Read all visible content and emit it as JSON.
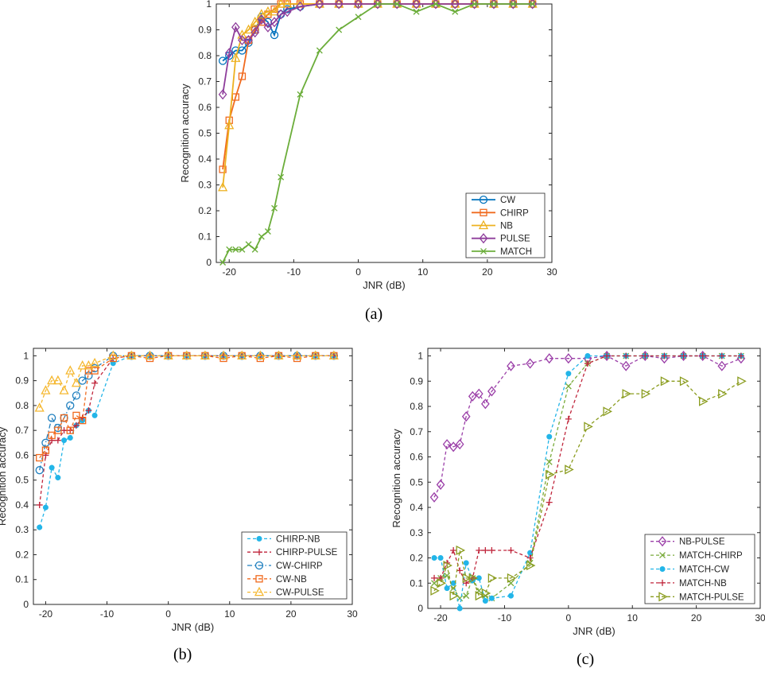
{
  "captions": {
    "a": "(a)",
    "b": "(b)",
    "c": "(c)"
  },
  "chart_data": [
    {
      "id": "a",
      "type": "line",
      "xlabel": "JNR (dB)",
      "ylabel": "Recognition accuracy",
      "xlim": [
        -22,
        30
      ],
      "ylim": [
        0,
        1
      ],
      "xticks": [
        -20,
        -10,
        0,
        10,
        20,
        30
      ],
      "yticks": [
        0,
        0.1,
        0.2,
        0.3,
        0.4,
        0.5,
        0.6,
        0.7,
        0.8,
        0.9,
        1
      ],
      "grid": false,
      "legend_position": "bottom-right",
      "series": [
        {
          "name": "CW",
          "color": "#0072bd",
          "dash": "solid",
          "marker": "circle",
          "x": [
            -21,
            -20,
            -19,
            -18,
            -17,
            -16,
            -15,
            -14,
            -13,
            -12,
            -11,
            -9,
            -6,
            -3,
            0,
            3,
            6,
            9,
            12,
            15,
            18,
            21,
            24,
            27
          ],
          "y": [
            0.78,
            0.8,
            0.82,
            0.82,
            0.85,
            0.9,
            0.95,
            0.93,
            0.88,
            0.96,
            0.98,
            0.99,
            1,
            1,
            1,
            1,
            1,
            1,
            1,
            1,
            1,
            1,
            1,
            1
          ]
        },
        {
          "name": "CHIRP",
          "color": "#f06a1e",
          "dash": "solid",
          "marker": "square",
          "x": [
            -21,
            -20,
            -19,
            -18,
            -17,
            -16,
            -15,
            -14,
            -13,
            -12,
            -11,
            -9,
            -6,
            -3,
            0,
            3,
            6,
            9,
            12,
            15,
            18,
            21,
            24,
            27
          ],
          "y": [
            0.36,
            0.55,
            0.64,
            0.72,
            0.86,
            0.9,
            0.93,
            0.96,
            0.98,
            1,
            1,
            1,
            1,
            1,
            1,
            1,
            1,
            1,
            1,
            1,
            1,
            1,
            1,
            1
          ]
        },
        {
          "name": "NB",
          "color": "#edb120",
          "dash": "solid",
          "marker": "triangle",
          "x": [
            -21,
            -20,
            -19,
            -18,
            -17,
            -16,
            -15,
            -14,
            -13,
            -12,
            -11,
            -9,
            -6,
            -3,
            0,
            3,
            6,
            9,
            12,
            15,
            18,
            21,
            24,
            27
          ],
          "y": [
            0.29,
            0.53,
            0.79,
            0.88,
            0.9,
            0.93,
            0.96,
            0.97,
            0.97,
            1,
            1,
            1,
            1,
            1,
            1,
            1,
            1,
            1,
            1,
            1,
            1,
            1,
            1,
            1
          ]
        },
        {
          "name": "PULSE",
          "color": "#8e3d9b",
          "dash": "solid",
          "marker": "diamond",
          "x": [
            -21,
            -20,
            -19,
            -18,
            -17,
            -16,
            -15,
            -14,
            -13,
            -12,
            -11,
            -9,
            -6,
            -3,
            0,
            3,
            6,
            9,
            12,
            15,
            18,
            21,
            24,
            27
          ],
          "y": [
            0.65,
            0.81,
            0.91,
            0.86,
            0.86,
            0.89,
            0.94,
            0.91,
            0.93,
            0.96,
            0.97,
            0.99,
            1,
            1,
            1,
            1,
            1,
            1,
            1,
            1,
            1,
            1,
            1,
            1
          ]
        },
        {
          "name": "MATCH",
          "color": "#6bad3a",
          "dash": "solid",
          "marker": "x",
          "x": [
            -21,
            -20,
            -19,
            -18,
            -17,
            -16,
            -15,
            -14,
            -13,
            -12,
            -9,
            -6,
            -3,
            0,
            3,
            6,
            9,
            12,
            15,
            18,
            21,
            24,
            27
          ],
          "y": [
            0.0,
            0.05,
            0.05,
            0.05,
            0.07,
            0.05,
            0.1,
            0.12,
            0.21,
            0.33,
            0.65,
            0.82,
            0.9,
            0.95,
            1,
            1,
            0.97,
            1,
            0.97,
            1,
            1,
            1,
            1
          ]
        }
      ]
    },
    {
      "id": "b",
      "type": "line",
      "xlabel": "JNR (dB)",
      "ylabel": "Recognition accuracy",
      "xlim": [
        -22,
        30
      ],
      "ylim": [
        0,
        1.03
      ],
      "xticks": [
        -20,
        -10,
        0,
        10,
        20,
        30
      ],
      "yticks": [
        0,
        0.1,
        0.2,
        0.3,
        0.4,
        0.5,
        0.6,
        0.7,
        0.8,
        0.9,
        1
      ],
      "grid": false,
      "legend_position": "bottom-right",
      "series": [
        {
          "name": "CHIRP-NB",
          "color": "#22b5e8",
          "dash": "dashed",
          "marker": "asterisk",
          "x": [
            -21,
            -20,
            -19,
            -18,
            -17,
            -16,
            -15,
            -14,
            -13,
            -12,
            -9,
            -6,
            -3,
            0,
            3,
            6,
            9,
            12,
            15,
            18,
            21,
            24,
            27
          ],
          "y": [
            0.31,
            0.39,
            0.55,
            0.51,
            0.66,
            0.67,
            0.72,
            0.74,
            0.78,
            0.76,
            0.97,
            1,
            1,
            1,
            1,
            1,
            1,
            1,
            1,
            1,
            1,
            1,
            1
          ]
        },
        {
          "name": "CHIRP-PULSE",
          "color": "#c0263c",
          "dash": "dashed",
          "marker": "plus",
          "x": [
            -21,
            -20,
            -19,
            -18,
            -17,
            -16,
            -15,
            -14,
            -13,
            -12,
            -9,
            -6,
            -3,
            0,
            3,
            6,
            9,
            12,
            15,
            18,
            21,
            24,
            27
          ],
          "y": [
            0.4,
            0.6,
            0.66,
            0.66,
            0.7,
            0.7,
            0.72,
            0.75,
            0.78,
            0.89,
            0.99,
            1,
            1,
            1,
            1,
            1,
            1,
            1,
            1,
            1,
            1,
            1,
            1
          ]
        },
        {
          "name": "CW-CHIRP",
          "color": "#1f7fbf",
          "dash": "dashdot",
          "marker": "circle",
          "x": [
            -21,
            -20,
            -19,
            -18,
            -17,
            -16,
            -15,
            -14,
            -13,
            -12,
            -9,
            -6,
            -3,
            0,
            3,
            6,
            9,
            12,
            15,
            18,
            21,
            24,
            27
          ],
          "y": [
            0.54,
            0.65,
            0.75,
            0.71,
            0.75,
            0.8,
            0.84,
            0.9,
            0.92,
            0.95,
            1,
            1,
            1,
            1,
            1,
            1,
            1,
            1,
            1,
            1,
            1,
            1,
            1
          ]
        },
        {
          "name": "CW-NB",
          "color": "#f06a1e",
          "dash": "dashed",
          "marker": "square",
          "x": [
            -21,
            -20,
            -19,
            -18,
            -17,
            -16,
            -15,
            -14,
            -13,
            -12,
            -9,
            -6,
            -3,
            0,
            3,
            6,
            9,
            12,
            15,
            18,
            21,
            24,
            27
          ],
          "y": [
            0.59,
            0.62,
            0.68,
            0.7,
            0.75,
            0.7,
            0.76,
            0.74,
            0.94,
            0.94,
            0.99,
            1,
            0.99,
            1,
            1,
            1,
            0.99,
            1,
            0.99,
            1,
            0.99,
            1,
            1
          ]
        },
        {
          "name": "CW-PULSE",
          "color": "#f5b830",
          "dash": "dashed",
          "marker": "triangle",
          "x": [
            -21,
            -20,
            -19,
            -18,
            -17,
            -16,
            -15,
            -14,
            -13,
            -12,
            -9,
            -6,
            -3,
            0,
            3,
            6,
            9,
            12,
            15,
            18,
            21,
            24,
            27
          ],
          "y": [
            0.79,
            0.86,
            0.9,
            0.9,
            0.86,
            0.94,
            0.89,
            0.96,
            0.96,
            0.97,
            1,
            1,
            1,
            1,
            1,
            1,
            1,
            1,
            1,
            1,
            1,
            1,
            1
          ]
        }
      ]
    },
    {
      "id": "c",
      "type": "line",
      "xlabel": "JNR (dB)",
      "ylabel": "Recognition accuracy",
      "xlim": [
        -22,
        30
      ],
      "ylim": [
        0,
        1.03
      ],
      "xticks": [
        -20,
        -10,
        0,
        10,
        20,
        30
      ],
      "yticks": [
        0,
        0.1,
        0.2,
        0.3,
        0.4,
        0.5,
        0.6,
        0.7,
        0.8,
        0.9,
        1
      ],
      "grid": false,
      "legend_position": "bottom-right",
      "series": [
        {
          "name": "NB-PULSE",
          "color": "#9b3fa8",
          "dash": "dashed",
          "marker": "diamond",
          "x": [
            -21,
            -20,
            -19,
            -18,
            -17,
            -16,
            -15,
            -14,
            -13,
            -12,
            -9,
            -6,
            -3,
            0,
            3,
            6,
            9,
            12,
            15,
            18,
            21,
            24,
            27
          ],
          "y": [
            0.44,
            0.49,
            0.65,
            0.64,
            0.65,
            0.76,
            0.84,
            0.85,
            0.81,
            0.86,
            0.96,
            0.97,
            0.99,
            0.99,
            0.99,
            1,
            0.96,
            1,
            0.99,
            1,
            1,
            0.96,
            0.99
          ]
        },
        {
          "name": "MATCH-CHIRP",
          "color": "#7aab3c",
          "dash": "dashed",
          "marker": "x",
          "x": [
            -21,
            -20,
            -19,
            -18,
            -17,
            -16,
            -15,
            -14,
            -13,
            -12,
            -9,
            -6,
            -3,
            0,
            3,
            6,
            9,
            12,
            15,
            18,
            21,
            24,
            27
          ],
          "y": [
            0.1,
            0.12,
            0.13,
            0.08,
            0.04,
            0.05,
            0.12,
            0.07,
            0.05,
            0.04,
            0.1,
            0.18,
            0.58,
            0.88,
            0.97,
            1,
            1,
            1,
            1,
            1,
            1,
            1,
            1
          ]
        },
        {
          "name": "MATCH-CW",
          "color": "#22b5e8",
          "dash": "dashed",
          "marker": "asterisk",
          "x": [
            -21,
            -20,
            -19,
            -18,
            -17,
            -16,
            -15,
            -14,
            -13,
            -12,
            -9,
            -6,
            -3,
            0,
            3,
            6,
            9,
            12,
            15,
            18,
            21,
            24,
            27
          ],
          "y": [
            0.2,
            0.2,
            0.08,
            0.1,
            0.0,
            0.18,
            0.11,
            0.12,
            0.03,
            0.04,
            0.05,
            0.22,
            0.68,
            0.93,
            1,
            1,
            1,
            1,
            1,
            1,
            1,
            1,
            1
          ]
        },
        {
          "name": "MATCH-NB",
          "color": "#c0263c",
          "dash": "dashed",
          "marker": "plus",
          "x": [
            -21,
            -20,
            -19,
            -18,
            -17,
            -16,
            -15,
            -14,
            -13,
            -12,
            -9,
            -6,
            -3,
            0,
            3,
            6,
            9,
            12,
            15,
            18,
            21,
            24,
            27
          ],
          "y": [
            0.12,
            0.12,
            0.18,
            0.23,
            0.15,
            0.1,
            0.12,
            0.23,
            0.23,
            0.23,
            0.23,
            0.2,
            0.42,
            0.75,
            0.97,
            1,
            1,
            1,
            1,
            1,
            1,
            1,
            1
          ]
        },
        {
          "name": "MATCH-PULSE",
          "color": "#8a9c1e",
          "dash": "dashed",
          "marker": "triangle-right",
          "x": [
            -21,
            -20,
            -19,
            -18,
            -17,
            -16,
            -15,
            -14,
            -13,
            -12,
            -9,
            -6,
            -3,
            0,
            3,
            6,
            9,
            12,
            15,
            18,
            21,
            24,
            27
          ],
          "y": [
            0.07,
            0.1,
            0.17,
            0.05,
            0.23,
            0.12,
            0.12,
            0.05,
            0.06,
            0.12,
            0.12,
            0.17,
            0.53,
            0.55,
            0.72,
            0.78,
            0.85,
            0.85,
            0.9,
            0.9,
            0.82,
            0.85,
            0.9
          ]
        }
      ]
    }
  ]
}
